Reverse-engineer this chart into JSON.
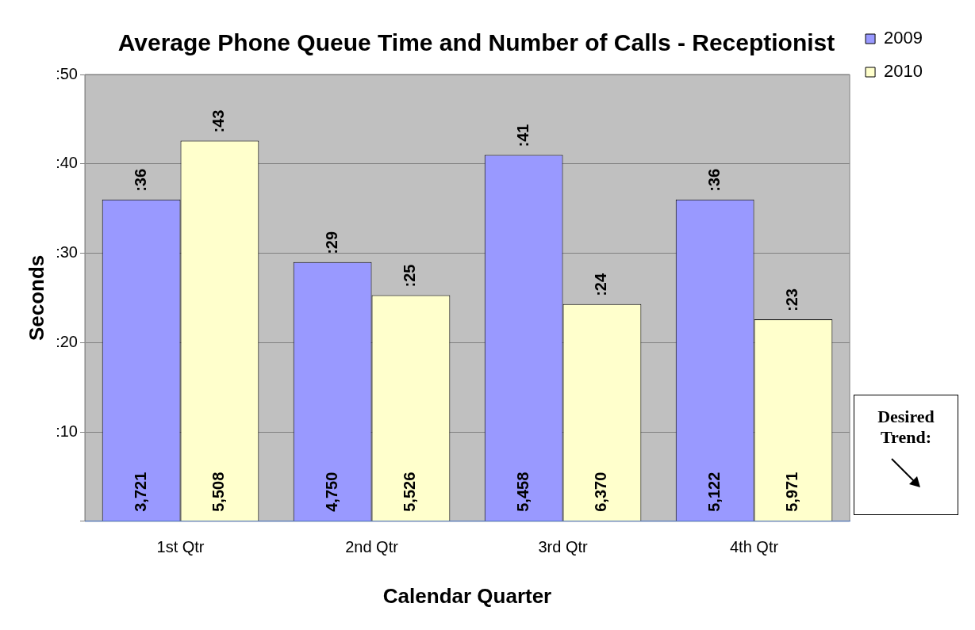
{
  "chart_data": {
    "type": "bar",
    "title": "Average Phone Queue Time and Number of Calls - Receptionist",
    "xlabel": "Calendar Quarter",
    "ylabel": "Seconds",
    "categories": [
      "1st Qtr",
      "2nd Qtr",
      "3rd Qtr",
      "4th Qtr"
    ],
    "series": [
      {
        "name": "2009",
        "color": "#9999ff",
        "values": [
          36,
          29,
          41,
          36
        ],
        "value_labels": [
          ":36",
          ":29",
          ":41",
          ":36"
        ]
      },
      {
        "name": "2010",
        "color": "#ffffcc",
        "values": [
          42.6,
          25.3,
          24.3,
          22.6
        ],
        "value_labels": [
          ":43",
          ":25",
          ":24",
          ":23"
        ]
      }
    ],
    "ylim": [
      0,
      50
    ],
    "yticks": [
      {
        "value": 0,
        "label": null
      },
      {
        "value": 10,
        "label": ":10"
      },
      {
        "value": 20,
        "label": ":20"
      },
      {
        "value": 30,
        "label": ":30"
      },
      {
        "value": 40,
        "label": ":40"
      },
      {
        "value": 50,
        "label": ":50"
      }
    ],
    "grid": "y",
    "legend": "right",
    "annotations": [
      "Desired Trend:",
      {
        "text": "3,721",
        "x": "1st Qtr",
        "y": 0
      },
      {
        "text": "5,508",
        "x": "1st Qtr",
        "y": 0
      },
      {
        "text": "4,750",
        "x": "2nd Qtr",
        "y": 0
      },
      {
        "text": "5,526",
        "x": "2nd Qtr",
        "y": 0
      },
      {
        "text": "5,458",
        "x": "3rd Qtr",
        "y": 0
      },
      {
        "text": "6,370",
        "x": "3rd Qtr",
        "y": 0
      },
      {
        "text": "5,122",
        "x": "4th Qtr",
        "y": 0
      },
      {
        "text": "5,971",
        "x": "4th Qtr",
        "y": 0
      }
    ]
  }
}
